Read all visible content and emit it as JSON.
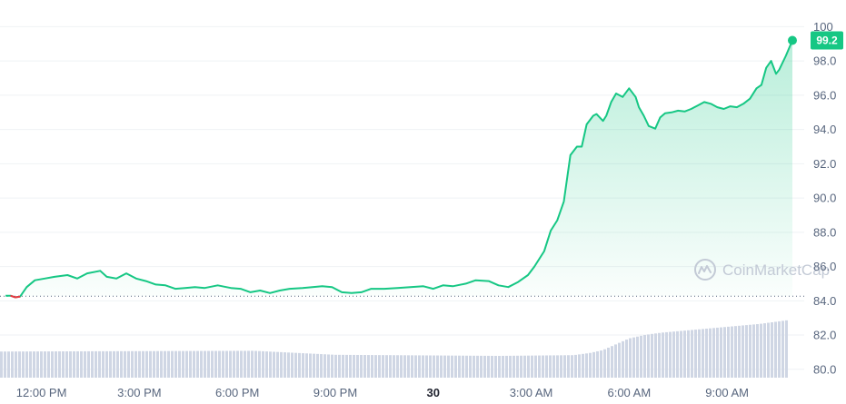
{
  "chart_data": {
    "type": "area",
    "y_ticks": [
      "100",
      "98.0",
      "96.0",
      "94.0",
      "92.0",
      "90.0",
      "88.0",
      "86.0",
      "84.0",
      "82.0",
      "80.0"
    ],
    "x_ticks": [
      "12:00 PM",
      "3:00 PM",
      "6:00 PM",
      "9:00 PM",
      "30",
      "3:00 AM",
      "6:00 AM",
      "9:00 AM"
    ],
    "bold_tick": "30",
    "ylim": [
      79.6,
      101.2
    ],
    "baseline": 84.27,
    "current_value": 99.2,
    "current_label": "99.2",
    "grid": true,
    "line_color": "#16c784",
    "down_color": "#ea3943",
    "volume_color": "#cfd6e4",
    "watermark": "CoinMarketCap",
    "x_hours": [
      10.9,
      11.05,
      11.2,
      11.35,
      11.55,
      11.8,
      12.1,
      12.4,
      12.8,
      13.1,
      13.4,
      13.8,
      14.0,
      14.3,
      14.6,
      14.9,
      15.2,
      15.5,
      15.8,
      16.1,
      16.4,
      16.7,
      17.0,
      17.4,
      17.8,
      18.1,
      18.4,
      18.7,
      19.0,
      19.3,
      19.6,
      20.0,
      20.3,
      20.6,
      20.9,
      21.2,
      21.5,
      21.8,
      22.1,
      22.5,
      22.9,
      23.3,
      23.7,
      24.0,
      24.3,
      24.6,
      25.0,
      25.3,
      25.7,
      26.0,
      26.3,
      26.6,
      26.9,
      27.1,
      27.4,
      27.6,
      27.8,
      28.0,
      28.2,
      28.4,
      28.55,
      28.7,
      28.9,
      29.0,
      29.2,
      29.3,
      29.45,
      29.6,
      29.8,
      30.0,
      30.2,
      30.3,
      30.45,
      30.6,
      30.8,
      30.95,
      31.1,
      31.3,
      31.5,
      31.7,
      31.9,
      32.1,
      32.3,
      32.5,
      32.7,
      32.9,
      33.1,
      33.3,
      33.5,
      33.7,
      33.9,
      34.05,
      34.2,
      34.35,
      34.5,
      34.6,
      34.8,
      35.0
    ],
    "y_values": [
      84.3,
      84.3,
      84.2,
      84.25,
      84.8,
      85.2,
      85.3,
      85.4,
      85.5,
      85.3,
      85.6,
      85.75,
      85.4,
      85.3,
      85.6,
      85.3,
      85.15,
      84.95,
      84.9,
      84.7,
      84.75,
      84.8,
      84.75,
      84.9,
      84.75,
      84.7,
      84.5,
      84.6,
      84.45,
      84.6,
      84.7,
      84.75,
      84.8,
      84.85,
      84.8,
      84.5,
      84.45,
      84.5,
      84.7,
      84.7,
      84.75,
      84.8,
      84.85,
      84.7,
      84.9,
      84.85,
      85.0,
      85.2,
      85.15,
      84.9,
      84.8,
      85.1,
      85.5,
      86.0,
      86.9,
      88.1,
      88.7,
      89.8,
      92.5,
      93.0,
      93.0,
      94.3,
      94.8,
      94.9,
      94.5,
      94.8,
      95.6,
      96.1,
      95.9,
      96.4,
      95.9,
      95.3,
      94.8,
      94.2,
      94.05,
      94.7,
      94.95,
      95.0,
      95.1,
      95.05,
      95.2,
      95.4,
      95.6,
      95.5,
      95.3,
      95.2,
      95.35,
      95.3,
      95.5,
      95.8,
      96.4,
      96.6,
      97.6,
      98.0,
      97.25,
      97.5,
      98.3,
      99.2
    ],
    "volume_hours": [
      10.9,
      18.5,
      21.0,
      26.0,
      28.3,
      28.8,
      29.2,
      29.6,
      30.0,
      30.5,
      31.0,
      31.5,
      32.0,
      32.5,
      33.0,
      33.5,
      34.0,
      34.5,
      35.0
    ],
    "volume_values": [
      0.36,
      0.37,
      0.315,
      0.3,
      0.31,
      0.34,
      0.38,
      0.46,
      0.54,
      0.59,
      0.62,
      0.64,
      0.66,
      0.68,
      0.7,
      0.72,
      0.74,
      0.77,
      0.8
    ]
  }
}
